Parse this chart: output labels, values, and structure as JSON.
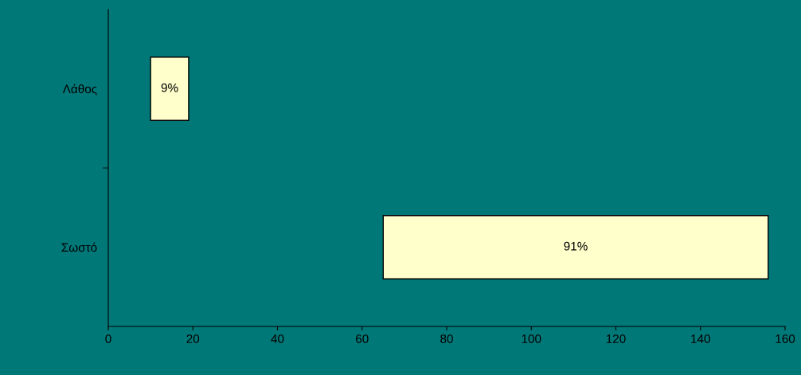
{
  "chart_data": {
    "type": "bar",
    "orientation": "horizontal",
    "categories": [
      "Λάθος",
      "Σωστό"
    ],
    "values": [
      9,
      91
    ],
    "base": [
      10,
      65
    ],
    "value_labels": [
      "9%",
      "91%"
    ],
    "color": "#ffffcc",
    "xlim": [
      0,
      160
    ],
    "xticks": [
      0,
      20,
      40,
      60,
      80,
      100,
      120,
      140,
      160
    ],
    "grid": false,
    "legend": false
  }
}
